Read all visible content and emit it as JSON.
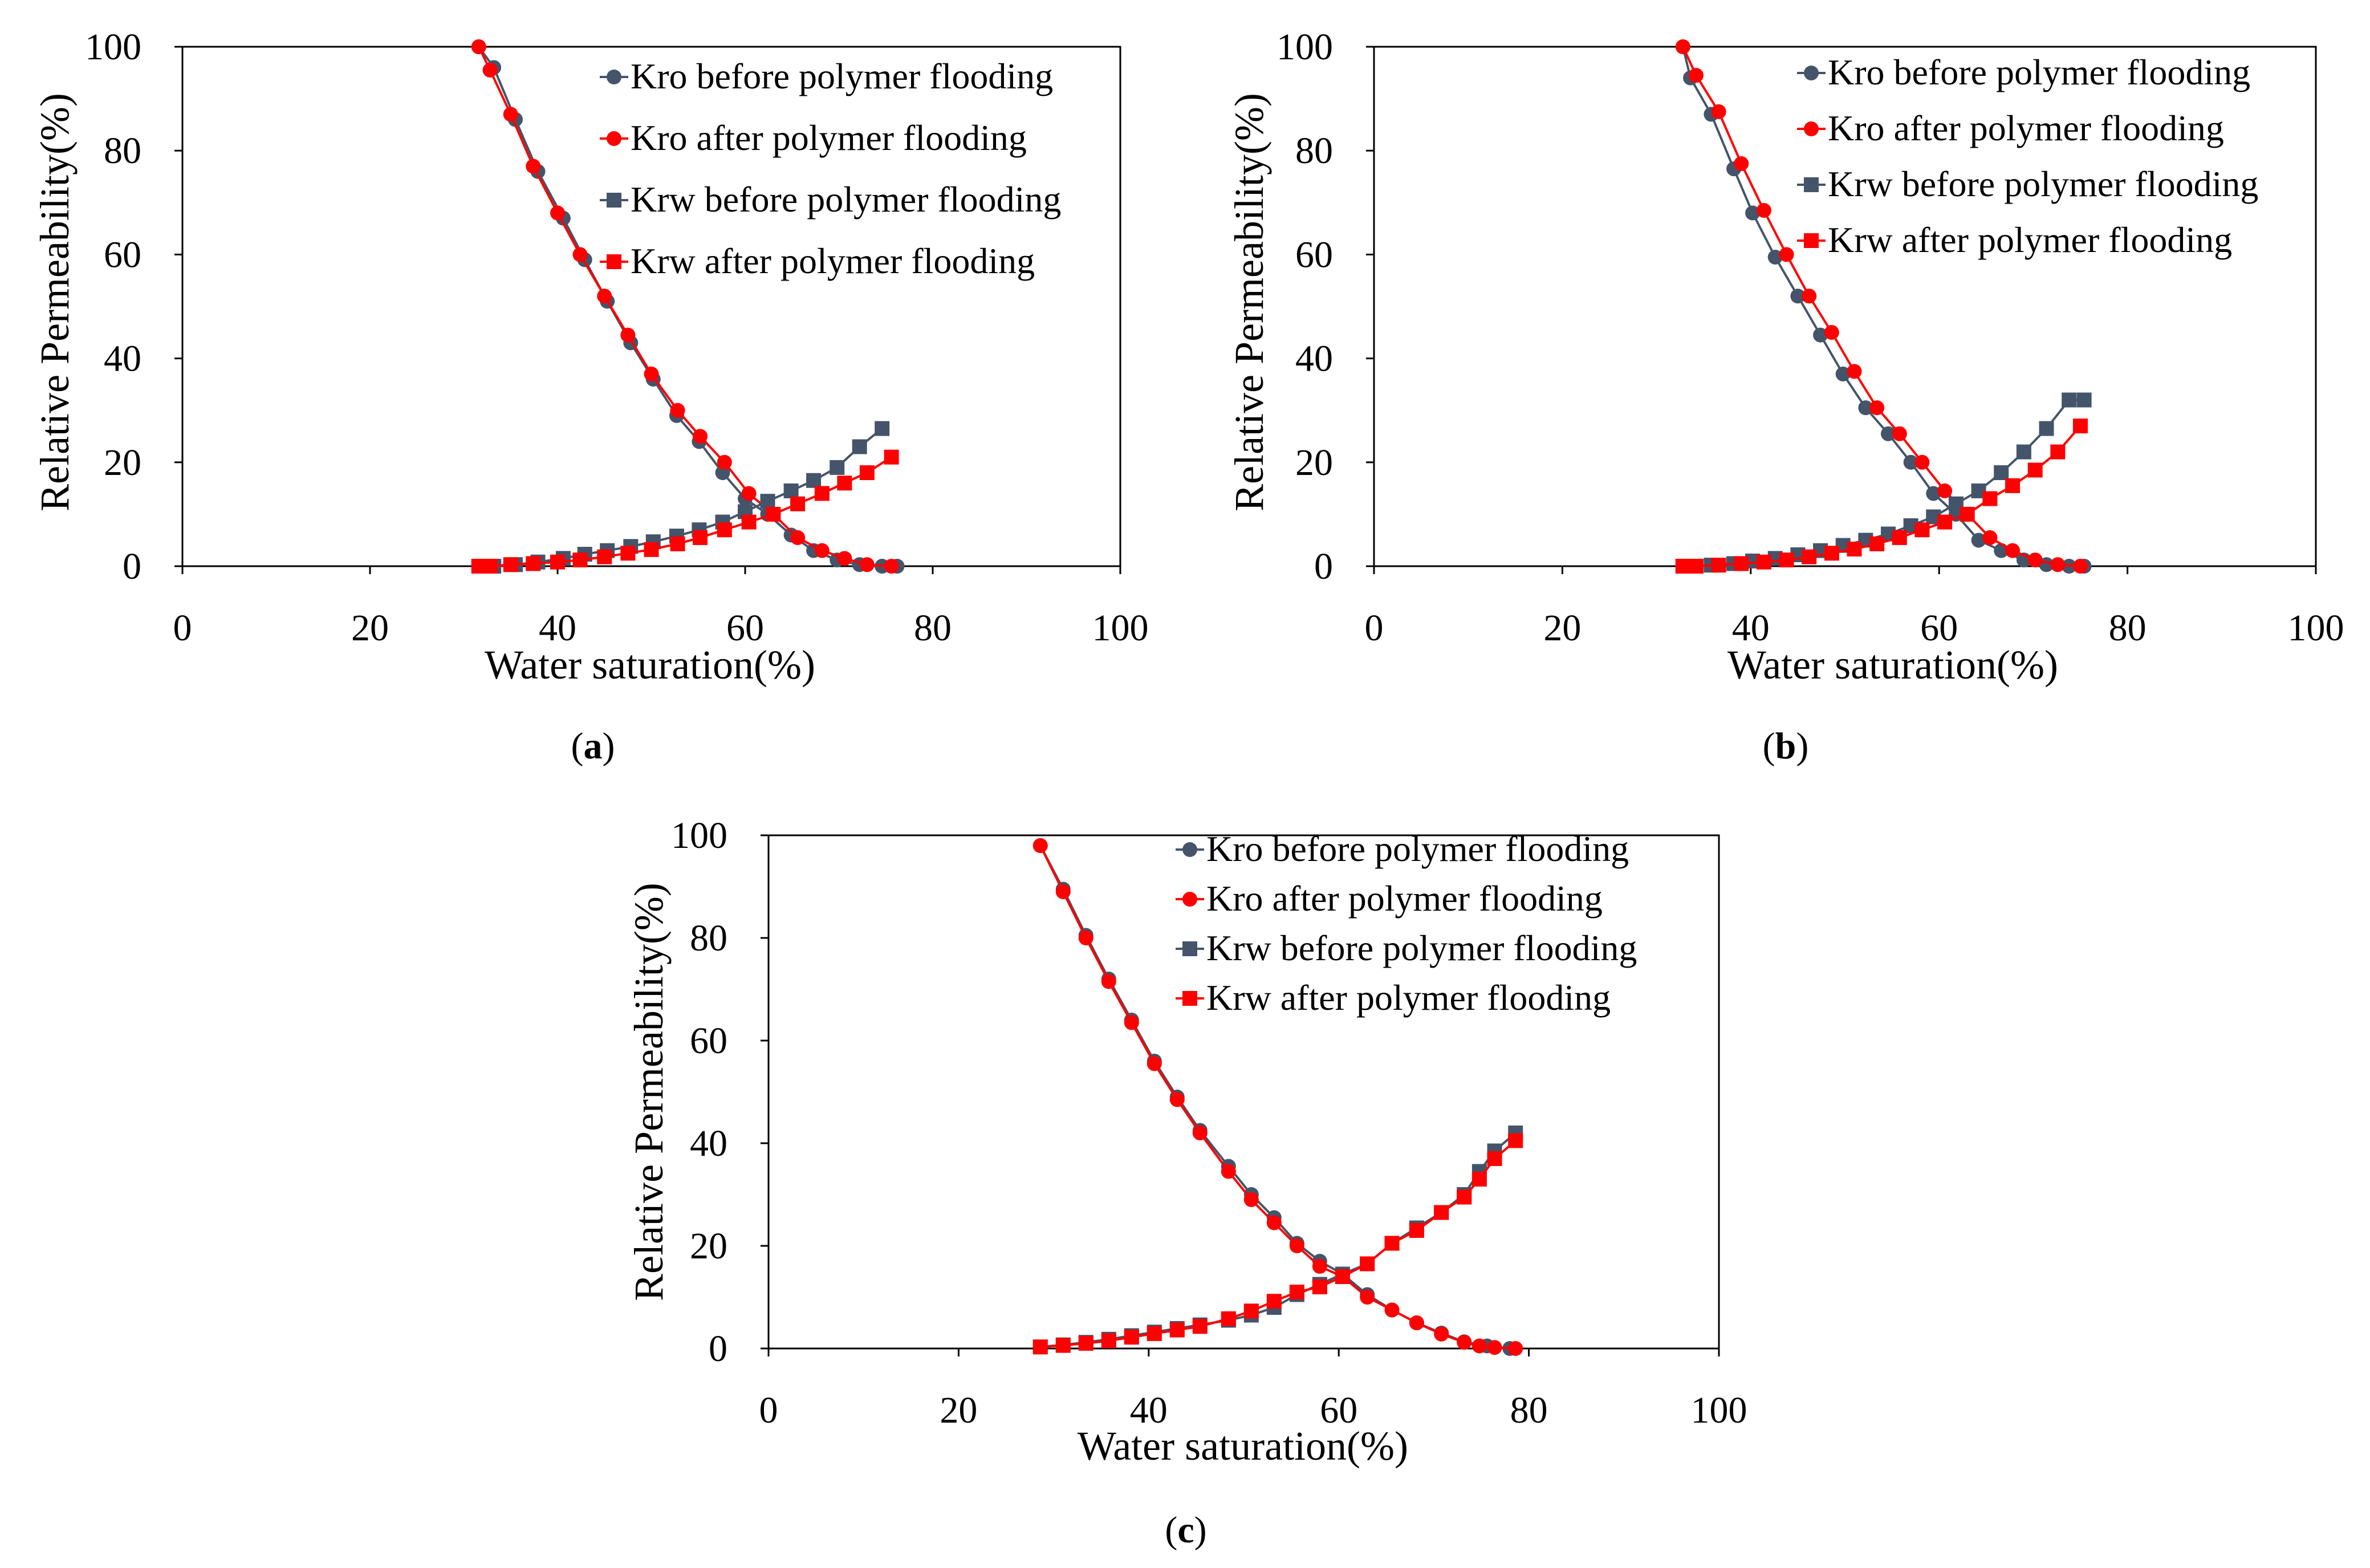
{
  "figure": {
    "colors": {
      "before": "#44546a",
      "after": "#ff0000",
      "axis": "#000000"
    }
  },
  "chart_data": [
    {
      "type": "line",
      "panel_label_prefix": "(",
      "panel_letter": "a",
      "panel_label_suffix": ")",
      "xlabel": "Water saturation(%)",
      "ylabel": "Relative Permeability(%)",
      "xlim": [
        0,
        100
      ],
      "ylim": [
        0,
        100
      ],
      "xticks": [
        0,
        20,
        40,
        60,
        80,
        100
      ],
      "yticks": [
        0,
        20,
        40,
        60,
        80,
        100
      ],
      "legend_position": "top-right",
      "series": [
        {
          "name": "Kro before polymer flooding",
          "marker": "circle",
          "color": "#44546a",
          "x": [
            31.6,
            33.2,
            35.5,
            37.9,
            40.6,
            42.9,
            45.3,
            47.8,
            50.2,
            52.7,
            55.1,
            57.6,
            60.0,
            62.4,
            64.9,
            67.3,
            69.8,
            72.2,
            74.6,
            76.2
          ],
          "y": [
            100,
            96,
            86,
            76,
            67,
            59,
            51,
            43,
            36,
            29,
            24,
            18,
            13,
            10,
            6,
            3,
            1.2,
            0.3,
            0,
            0
          ]
        },
        {
          "name": "Kro after polymer flooding",
          "marker": "circle",
          "color": "#ff0000",
          "x": [
            31.6,
            32.8,
            35.0,
            37.4,
            40.0,
            42.4,
            45.0,
            47.5,
            50.0,
            52.8,
            55.2,
            57.8,
            60.4,
            63.0,
            65.6,
            68.2,
            70.6,
            73.0,
            75.6
          ],
          "y": [
            100,
            95.5,
            87,
            77,
            68,
            60,
            52,
            44.5,
            37,
            30,
            25,
            20,
            14,
            10,
            5.5,
            3,
            1.5,
            0.3,
            0
          ]
        },
        {
          "name": "Krw before polymer flooding",
          "marker": "square",
          "color": "#44546a",
          "x": [
            31.6,
            33.2,
            35.5,
            37.9,
            40.6,
            42.9,
            45.3,
            47.8,
            50.2,
            52.7,
            55.1,
            57.6,
            60.0,
            62.4,
            64.9,
            67.3,
            69.8,
            72.2,
            74.6
          ],
          "y": [
            0,
            0,
            0.3,
            0.8,
            1.5,
            2.3,
            3,
            3.8,
            4.7,
            5.8,
            7,
            8.5,
            10.5,
            12.5,
            14.5,
            16.5,
            19,
            23,
            26.5
          ]
        },
        {
          "name": "Krw after polymer flooding",
          "marker": "square",
          "color": "#ff0000",
          "x": [
            31.6,
            32.8,
            35.0,
            37.4,
            40.0,
            42.4,
            45.0,
            47.5,
            50.0,
            52.8,
            55.2,
            57.8,
            60.4,
            63.0,
            65.6,
            68.2,
            70.6,
            73.0,
            75.6
          ],
          "y": [
            0,
            0,
            0.3,
            0.5,
            0.8,
            1.2,
            1.8,
            2.5,
            3.2,
            4.3,
            5.5,
            7,
            8.5,
            10,
            12,
            14,
            16,
            18,
            21
          ]
        }
      ]
    },
    {
      "type": "line",
      "panel_label_prefix": "(",
      "panel_letter": "b",
      "panel_label_suffix": ")",
      "xlabel": "Water saturation(%)",
      "ylabel": "Relative Permeability(%)",
      "xlim": [
        0,
        100
      ],
      "ylim": [
        0,
        100
      ],
      "xticks": [
        0,
        20,
        40,
        60,
        80,
        100
      ],
      "yticks": [
        0,
        20,
        40,
        60,
        80,
        100
      ],
      "legend_position": "top-right",
      "series": [
        {
          "name": "Kro before polymer flooding",
          "marker": "circle",
          "color": "#44546a",
          "x": [
            32.8,
            33.6,
            35.8,
            38.2,
            40.2,
            42.6,
            45.0,
            47.4,
            49.8,
            52.2,
            54.6,
            57.0,
            59.4,
            61.8,
            64.2,
            66.6,
            69.0,
            71.4,
            73.8,
            75.4
          ],
          "y": [
            100,
            94,
            87,
            76.5,
            68,
            59.5,
            52,
            44.5,
            37,
            30.5,
            25.5,
            20,
            14,
            10,
            5,
            3,
            1.2,
            0.3,
            0,
            0
          ]
        },
        {
          "name": "Kro after polymer flooding",
          "marker": "circle",
          "color": "#ff0000",
          "x": [
            32.8,
            34.2,
            36.6,
            39.0,
            41.4,
            43.8,
            46.2,
            48.6,
            51.0,
            53.4,
            55.8,
            58.2,
            60.6,
            63.0,
            65.4,
            67.8,
            70.2,
            72.6,
            75.0
          ],
          "y": [
            100,
            94.5,
            87.5,
            77.5,
            68.5,
            60,
            52,
            45,
            37.5,
            30.5,
            25.5,
            20,
            14.5,
            10,
            5.5,
            3,
            1.2,
            0.3,
            0
          ]
        },
        {
          "name": "Krw before polymer flooding",
          "marker": "square",
          "color": "#44546a",
          "x": [
            32.8,
            33.6,
            35.8,
            38.2,
            40.2,
            42.6,
            45.0,
            47.4,
            49.8,
            52.2,
            54.6,
            57.0,
            59.4,
            61.8,
            64.2,
            66.6,
            69.0,
            71.4,
            73.8,
            75.4
          ],
          "y": [
            0,
            0,
            0.2,
            0.5,
            1,
            1.5,
            2.2,
            3,
            4,
            5,
            6.2,
            7.8,
            9.5,
            12,
            14.5,
            18,
            22,
            26.5,
            32,
            32
          ]
        },
        {
          "name": "Krw after polymer flooding",
          "marker": "square",
          "color": "#ff0000",
          "x": [
            32.8,
            34.2,
            36.6,
            39.0,
            41.4,
            43.8,
            46.2,
            48.6,
            51.0,
            53.4,
            55.8,
            58.2,
            60.6,
            63.0,
            65.4,
            67.8,
            70.2,
            72.6,
            75.0
          ],
          "y": [
            0,
            0,
            0.2,
            0.5,
            0.8,
            1.2,
            1.8,
            2.5,
            3.3,
            4.3,
            5.5,
            7,
            8.5,
            10,
            13,
            15.5,
            18.5,
            22,
            27
          ]
        }
      ]
    },
    {
      "type": "line",
      "panel_label_prefix": "(",
      "panel_letter": "c",
      "panel_label_suffix": ")",
      "xlabel": "Water saturation(%)",
      "ylabel": "Relative Permeability(%)",
      "xlim": [
        0,
        100
      ],
      "ylim": [
        0,
        100
      ],
      "xticks": [
        0,
        20,
        40,
        60,
        80,
        100
      ],
      "yticks": [
        0,
        20,
        40,
        60,
        80,
        100
      ],
      "legend_position": "top-right",
      "series": [
        {
          "name": "Kro before polymer flooding",
          "marker": "circle",
          "color": "#44546a",
          "x": [
            28.6,
            31.0,
            33.4,
            35.8,
            38.2,
            40.6,
            43.0,
            45.4,
            48.4,
            50.8,
            53.2,
            55.6,
            58.0,
            60.4,
            63.0,
            65.6,
            68.2,
            70.8,
            73.2,
            75.6,
            78.0
          ],
          "y": [
            98,
            89.5,
            80.5,
            72,
            64,
            56,
            49,
            42.5,
            35.5,
            30,
            25.5,
            20.5,
            17,
            14.5,
            10.5,
            7.5,
            5,
            3,
            1.3,
            0.5,
            0
          ]
        },
        {
          "name": "Kro after polymer flooding",
          "marker": "circle",
          "color": "#ff0000",
          "x": [
            28.6,
            31.0,
            33.4,
            35.8,
            38.2,
            40.6,
            43.0,
            45.4,
            48.4,
            50.8,
            53.2,
            55.6,
            58.0,
            60.4,
            63.0,
            65.6,
            68.2,
            70.8,
            73.2,
            74.8,
            76.4,
            78.6
          ],
          "y": [
            98,
            89,
            80,
            71.5,
            63.5,
            55.5,
            48.5,
            42,
            34.5,
            29,
            24.5,
            20,
            16,
            14,
            10,
            7.5,
            5,
            2.8,
            1.2,
            0.5,
            0.2,
            0
          ]
        },
        {
          "name": "Krw before polymer flooding",
          "marker": "square",
          "color": "#44546a",
          "x": [
            28.6,
            31.0,
            33.4,
            35.8,
            38.2,
            40.6,
            43.0,
            45.4,
            48.4,
            50.8,
            53.2,
            55.6,
            58.0,
            60.4,
            63.0,
            65.6,
            68.2,
            70.8,
            73.2,
            74.8,
            76.4,
            78.6
          ],
          "y": [
            0.3,
            0.7,
            1.2,
            1.8,
            2.5,
            3.2,
            3.9,
            4.6,
            5.5,
            6.5,
            8,
            10.5,
            12.5,
            14.5,
            16.5,
            20.5,
            23.5,
            26.5,
            30,
            34.5,
            38.5,
            42
          ]
        },
        {
          "name": "Krw after polymer flooding",
          "marker": "square",
          "color": "#ff0000",
          "x": [
            28.6,
            31.0,
            33.4,
            35.8,
            38.2,
            40.6,
            43.0,
            45.4,
            48.4,
            50.8,
            53.2,
            55.6,
            58.0,
            60.4,
            63.0,
            65.6,
            68.2,
            70.8,
            73.2,
            74.8,
            76.4,
            78.6
          ],
          "y": [
            0.3,
            0.6,
            1,
            1.5,
            2.2,
            2.9,
            3.6,
            4.3,
            5.8,
            7.3,
            9.2,
            11,
            12,
            14,
            16.5,
            20.5,
            23,
            26.5,
            29.5,
            33,
            37,
            40.5
          ]
        }
      ]
    }
  ]
}
